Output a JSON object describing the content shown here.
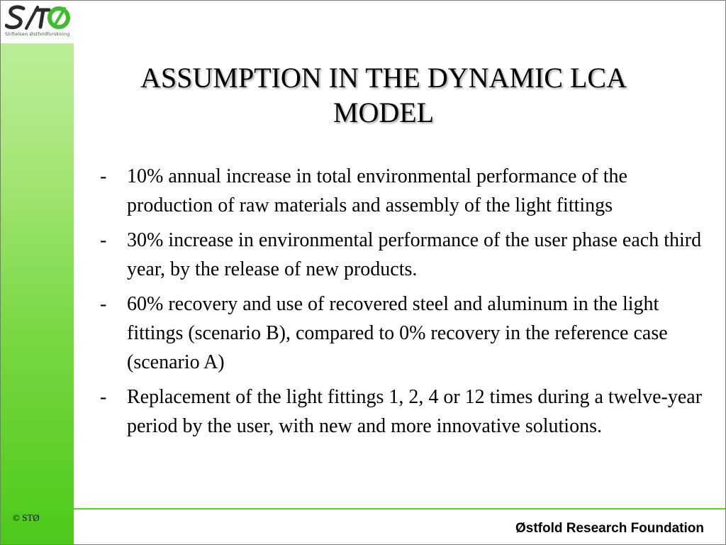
{
  "sidebar": {
    "logo_caption": "Stiftelsen Østfoldforskning",
    "copyright": "© STØ"
  },
  "slide": {
    "title": "ASSUMPTION IN THE DYNAMIC LCA MODEL",
    "bullet_marker": "-",
    "bullets": [
      "10% annual increase in total environmental performance of the production of raw materials and assembly of the light fittings",
      "30% increase in environmental performance of the user phase each third year, by the release of new products.",
      "60% recovery and use of recovered steel and aluminum in the light fittings (scenario B), compared to 0% recovery in the reference case (scenario A)",
      "Replacement of the light fittings 1, 2, 4 or 12 times during a twelve-year period by the user, with new and more innovative solutions."
    ]
  },
  "footer": {
    "organization": "Østfold Research Foundation"
  },
  "colors": {
    "accent_green": "#55d41e",
    "sidebar_top": "#c2f2a3",
    "sidebar_bottom": "#4cc91a"
  }
}
